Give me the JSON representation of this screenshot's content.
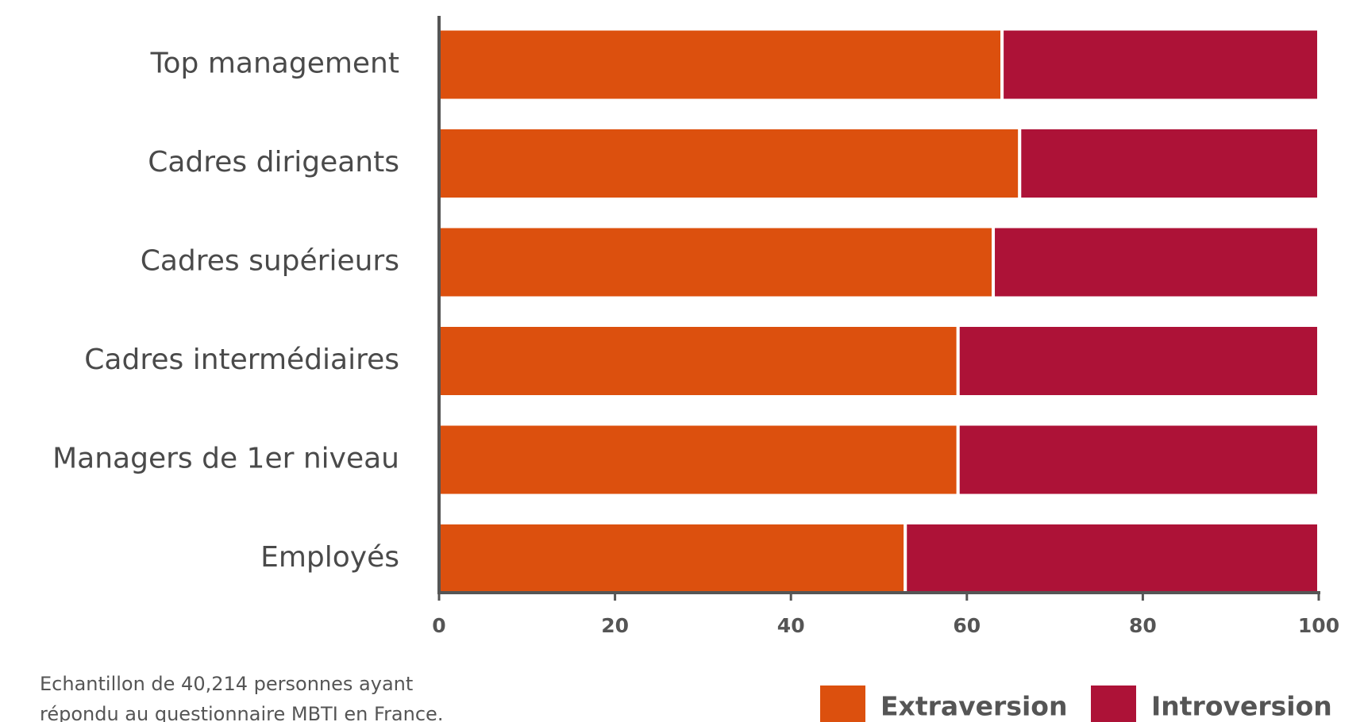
{
  "chart_data": {
    "type": "stacked-barh",
    "categories": [
      "Top management",
      "Cadres dirigeants",
      "Cadres supérieurs",
      "Cadres intermédiaires",
      "Managers de 1er niveau",
      "Employés"
    ],
    "series": [
      {
        "name": "Extraversion",
        "color": "#dc500e",
        "values": [
          64,
          66,
          63,
          59,
          59,
          53
        ]
      },
      {
        "name": "Introversion",
        "color": "#ad1237",
        "values": [
          36,
          34,
          37,
          41,
          41,
          47
        ]
      }
    ],
    "xlim": [
      0,
      100
    ],
    "xticks": [
      0,
      20,
      40,
      60,
      80,
      100
    ],
    "note": [
      "Echantillon de 40,214 personnes ayant",
      "répondu au questionnaire MBTI en France."
    ],
    "legend": "bottom-right"
  }
}
